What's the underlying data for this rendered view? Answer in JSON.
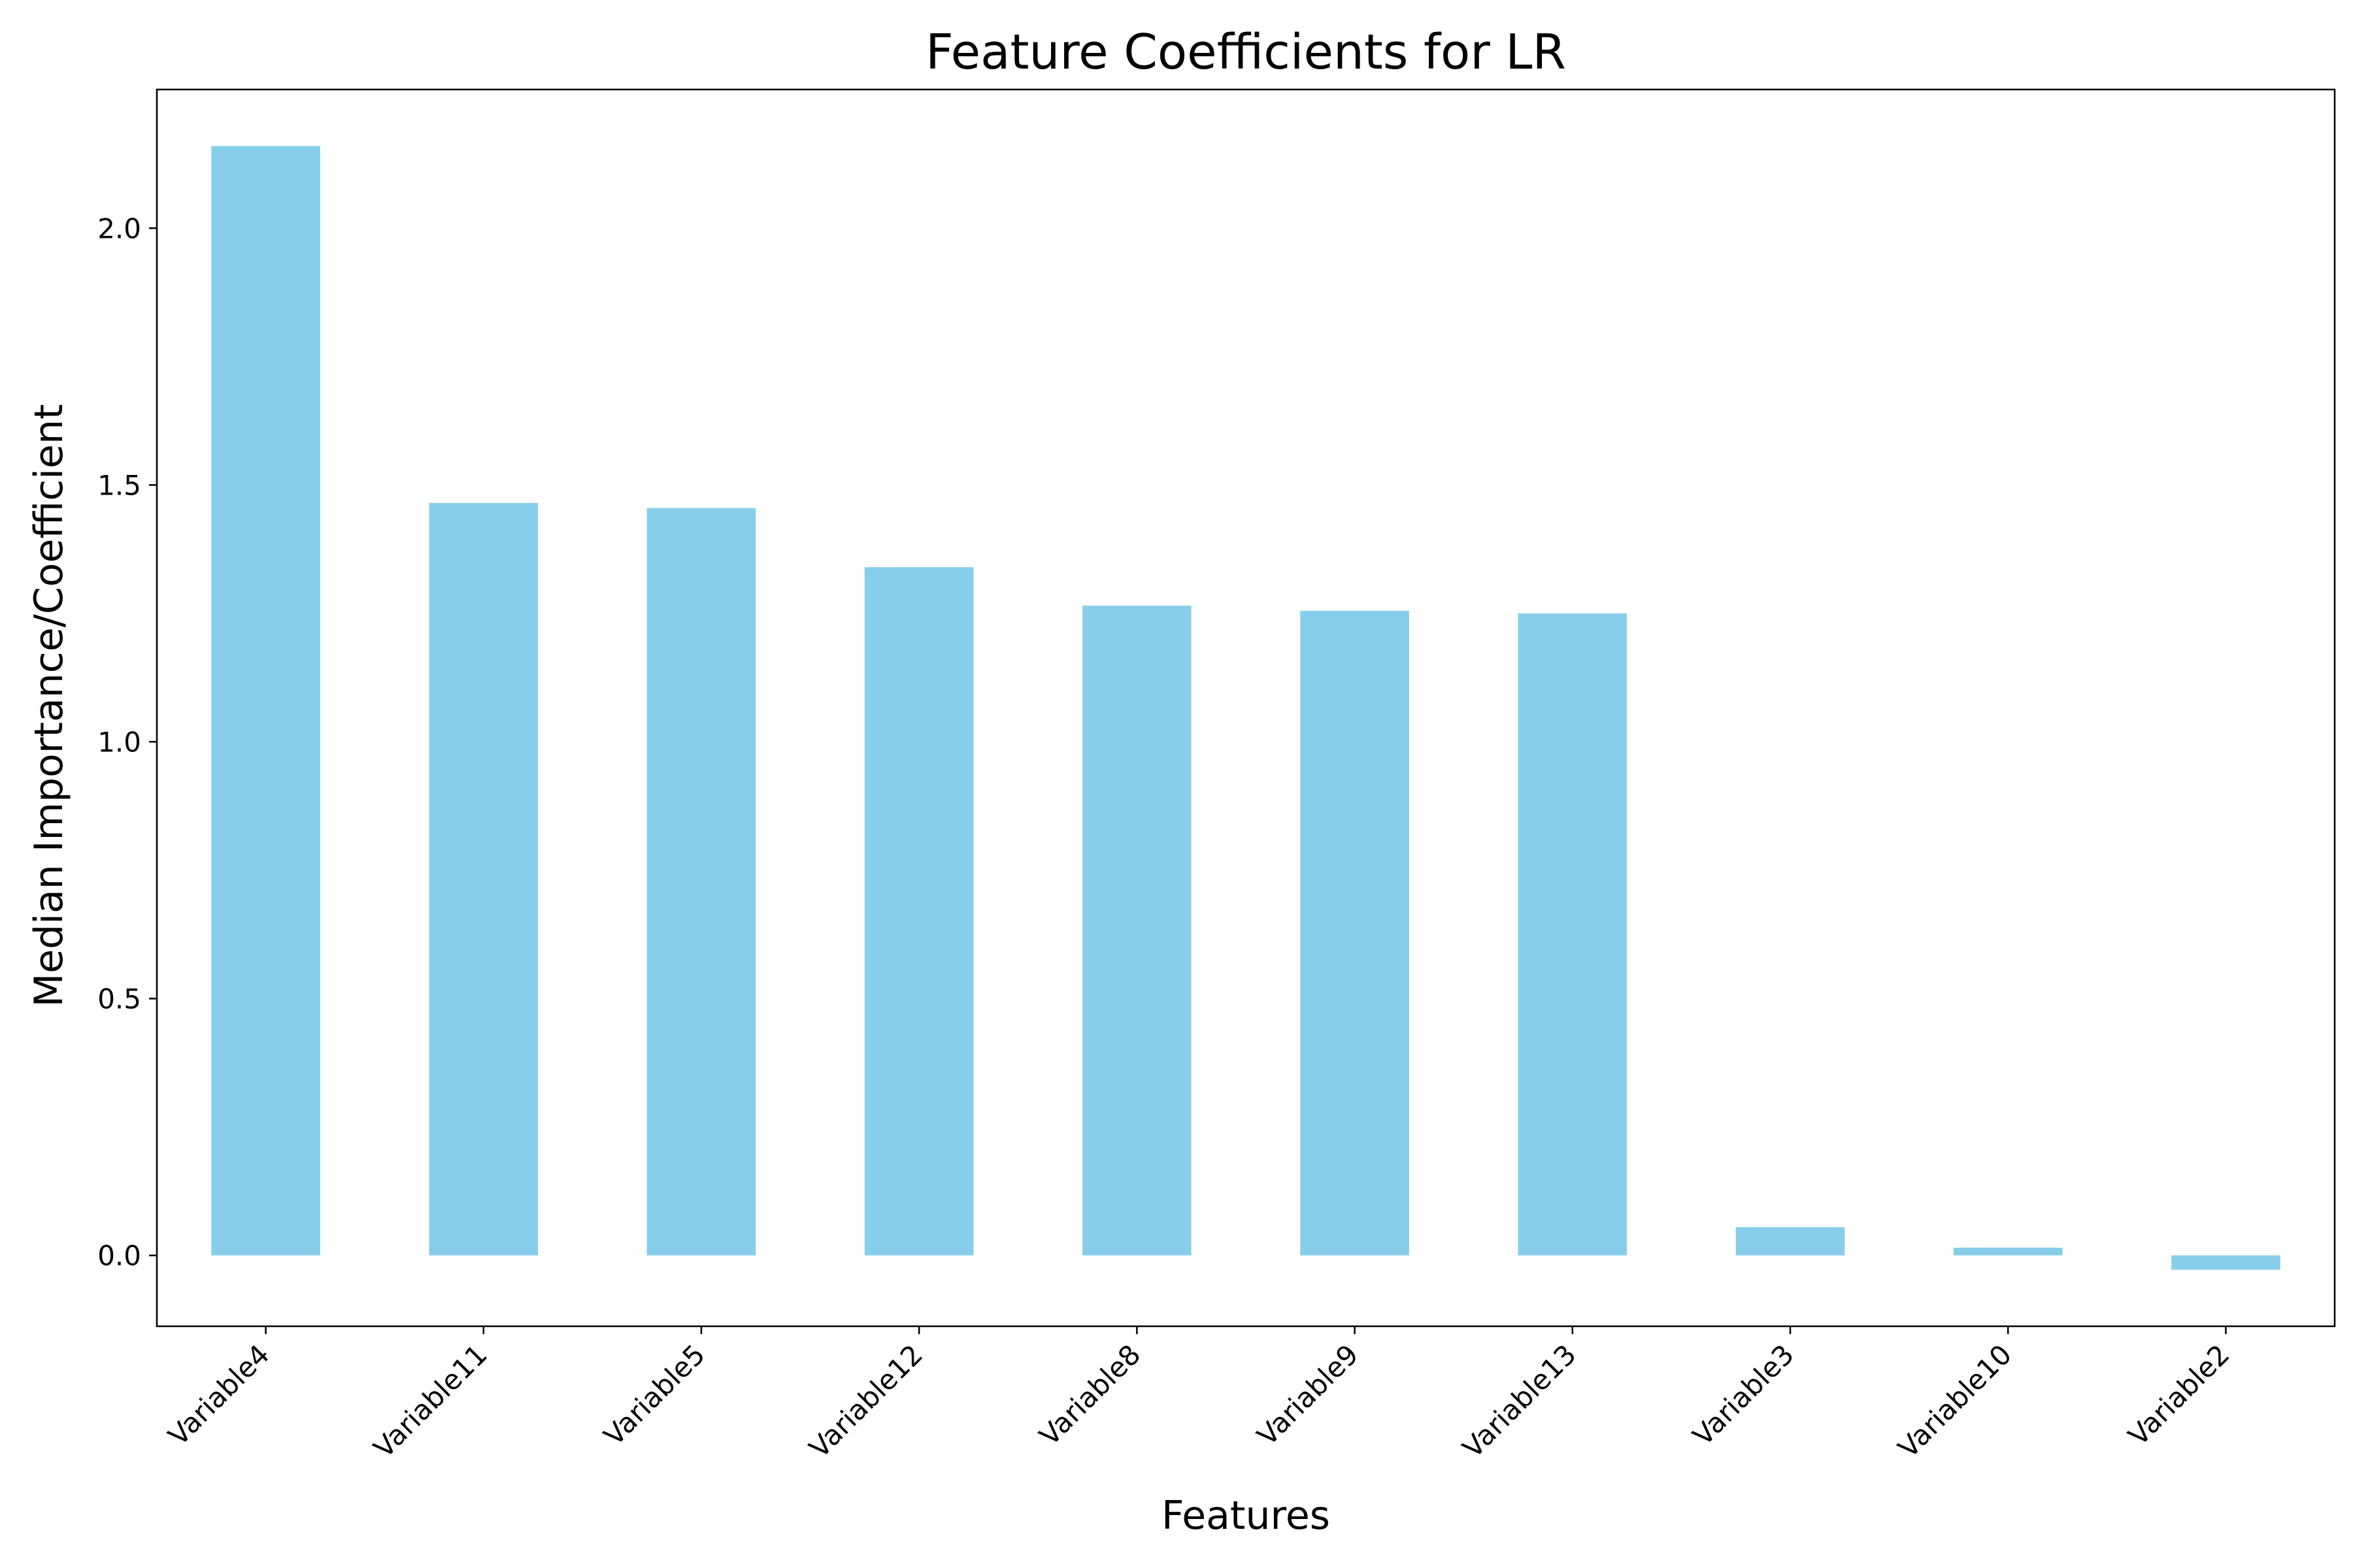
{
  "chart_data": {
    "type": "bar",
    "title": "Feature Coefficients for LR",
    "xlabel": "Features",
    "ylabel": "Median Importance/Coefficient",
    "categories": [
      "Variable4",
      "Variable11",
      "Variable5",
      "Variable12",
      "Variable8",
      "Variable9",
      "Variable13",
      "Variable3",
      "Variable10",
      "Variable2"
    ],
    "values": [
      2.16,
      1.465,
      1.455,
      1.34,
      1.265,
      1.255,
      1.25,
      0.055,
      0.015,
      -0.028
    ],
    "ylim": [
      -0.138,
      2.27
    ],
    "yticks": [
      0.0,
      0.5,
      1.0,
      1.5,
      2.0
    ],
    "ytick_labels": [
      "0.0",
      "0.5",
      "1.0",
      "1.5",
      "2.0"
    ],
    "grid": false,
    "bar_color": "#87CEEB",
    "axis_color": "#000000"
  }
}
